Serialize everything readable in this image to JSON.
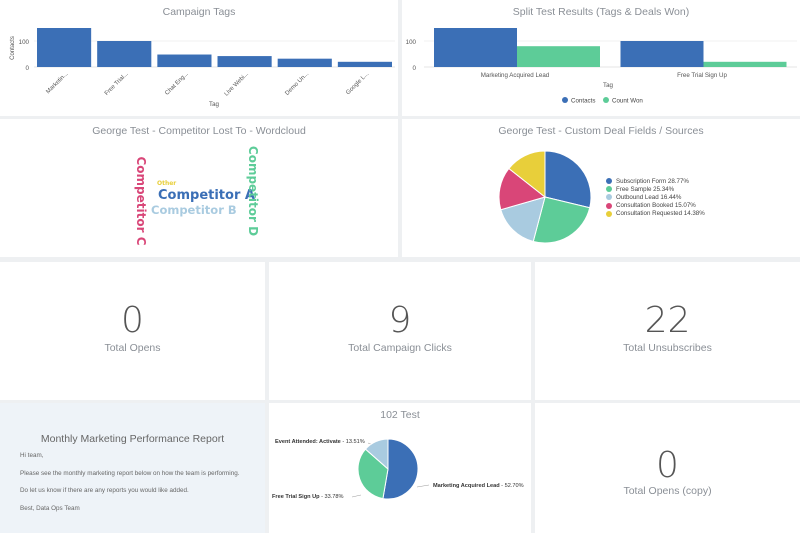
{
  "campaign_tags": {
    "title": "Campaign Tags",
    "xlabel": "Tag",
    "ylabel": "Contacts",
    "ticks": [
      "100",
      "0"
    ],
    "categories": [
      "Marketin...",
      "Free Trial...",
      "Chat Eng...",
      "Live Webi...",
      "Demo Un...",
      "Google L..."
    ]
  },
  "split_test": {
    "title": "Split Test Results (Tags & Deals Won)",
    "xlabel": "Tag",
    "ticks": [
      "100",
      "0"
    ],
    "categories": [
      "Marketing Acquired Lead",
      "Free Trial Sign Up"
    ],
    "legend": [
      "Contacts",
      "Count Won"
    ],
    "colors": {
      "contacts": "#3b6fb6",
      "count_won": "#5dcc98"
    }
  },
  "wordcloud": {
    "title": "George Test - Competitor Lost To - Wordcloud",
    "words": {
      "a": "Competitor A",
      "b": "Competitor B",
      "c": "Competitor C",
      "d": "Competitor D",
      "other": "Other"
    }
  },
  "deal_fields": {
    "title": "George Test - Custom Deal Fields / Sources",
    "legend": [
      "Subscription Form 28.77%",
      "Free Sample 25.34%",
      "Outbound Lead 16.44%",
      "Consultation Booked 15.07%",
      "Consultation Requested 14.38%"
    ]
  },
  "metrics": {
    "opens": {
      "value": "0",
      "label": "Total Opens"
    },
    "clicks": {
      "value": "9",
      "label": "Total Campaign Clicks"
    },
    "unsubscribes": {
      "value": "22",
      "label": "Total Unsubscribes"
    },
    "opens_copy": {
      "value": "0",
      "label": "Total Opens (copy)"
    }
  },
  "report": {
    "title": "Monthly Marketing Performance Report",
    "lines": [
      "Hi team,",
      "Please see the monthly marketing report below on how the team is performing.",
      "Do let us know if there are any reports you would like added.",
      "Best, Data Ops Team"
    ]
  },
  "test_102": {
    "title": "102 Test",
    "labels": [
      {
        "name": "Marketing Acquired Lead",
        "pct": " - 52.70%"
      },
      {
        "name": "Free Trial Sign Up",
        "pct": " - 33.78%"
      },
      {
        "name": "Event Attended: Activate",
        "pct": " - 13.51%"
      }
    ]
  },
  "chart_data": [
    {
      "type": "bar",
      "title": "Campaign Tags",
      "xlabel": "Tag",
      "ylabel": "Contacts",
      "categories": [
        "Marketin...",
        "Free Trial...",
        "Chat Eng...",
        "Live Webi...",
        "Demo Un...",
        "Google L..."
      ],
      "values": [
        150,
        100,
        48,
        42,
        32,
        20
      ],
      "ylim": [
        0,
        150
      ],
      "color": "#3b6fb6"
    },
    {
      "type": "bar",
      "title": "Split Test Results (Tags & Deals Won)",
      "xlabel": "Tag",
      "categories": [
        "Marketing Acquired Lead",
        "Free Trial Sign Up"
      ],
      "series": [
        {
          "name": "Contacts",
          "values": [
            150,
            100
          ]
        },
        {
          "name": "Count Won",
          "values": [
            80,
            20
          ]
        }
      ],
      "ylim": [
        0,
        150
      ],
      "legend": "bottom"
    },
    {
      "type": "pie",
      "title": "George Test - Custom Deal Fields / Sources",
      "slices": [
        {
          "label": "Subscription Form",
          "value": 28.77,
          "color": "#3b6fb6"
        },
        {
          "label": "Free Sample",
          "value": 25.34,
          "color": "#5dcc98"
        },
        {
          "label": "Outbound Lead",
          "value": 16.44,
          "color": "#a9cbe0"
        },
        {
          "label": "Consultation Booked",
          "value": 15.07,
          "color": "#d94678"
        },
        {
          "label": "Consultation Requested",
          "value": 14.38,
          "color": "#e8cf3a"
        }
      ],
      "legend": "right"
    },
    {
      "type": "pie",
      "title": "102 Test",
      "slices": [
        {
          "label": "Marketing Acquired Lead",
          "value": 52.7,
          "color": "#3b6fb6"
        },
        {
          "label": "Free Trial Sign Up",
          "value": 33.78,
          "color": "#5dcc98"
        },
        {
          "label": "Event Attended: Activate",
          "value": 13.51,
          "color": "#a9cbe0"
        }
      ]
    }
  ]
}
